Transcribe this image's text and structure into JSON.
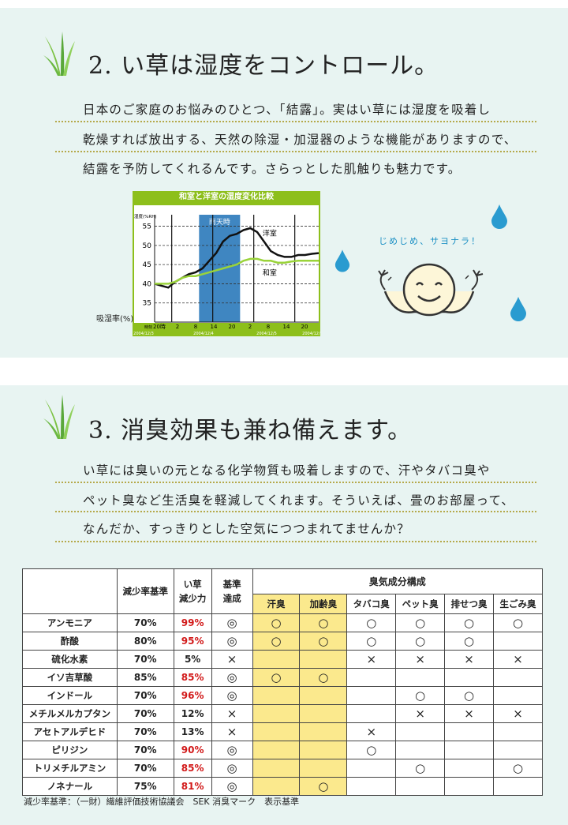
{
  "section1": {
    "heading": "2. い草は湿度をコントロール。",
    "lines": [
      "日本のご家庭のお悩みのひとつ、「結露」。実はい草には湿度を吸着し",
      "乾燥すれば放出する、天然の除湿・加湿器のような機能がありますので、",
      "結露を予防してくれるんです。さらっとした肌触りも魅力です。"
    ],
    "chart": {
      "title": "和室と洋室の湿度変化比較",
      "unit_label": "湿度(%RH)",
      "ylabel": "吸湿率(%)",
      "band_label": "雨天時",
      "series_labels": [
        "洋室",
        "和室"
      ],
      "x_header": "時刻",
      "hour_ticks": [
        "20時",
        "2",
        "8",
        "14",
        "20",
        "2",
        "8",
        "14",
        "20",
        "2"
      ],
      "dates": [
        "2004/12/3",
        "2004/12/4",
        "2004/12/5",
        "2004/12/6"
      ],
      "colors": {
        "frame": "#8dbf1b",
        "band": "#3f86c1",
        "yoshitsu": "#111111",
        "washitsu": "#9ad33a"
      }
    },
    "mascot_text": "じめじめ、サヨナラ！"
  },
  "chart_data": {
    "type": "line",
    "title": "和室と洋室の湿度変化比較",
    "xlabel": "時刻",
    "ylabel": "吸湿率(%)",
    "ylim": [
      30,
      58
    ],
    "yticks": [
      35,
      40,
      45,
      50,
      55
    ],
    "x": [
      0,
      1,
      2,
      3,
      4,
      5,
      6,
      7,
      8,
      9,
      10,
      11,
      12,
      13,
      14,
      15,
      16,
      17,
      18,
      19,
      20,
      21,
      22,
      23,
      24
    ],
    "series": [
      {
        "name": "洋室",
        "values": [
          40,
          39.5,
          39,
          40.5,
          41.5,
          42.5,
          43,
          44,
          46,
          48,
          51,
          52.5,
          53,
          54,
          54.5,
          53.5,
          51,
          48.5,
          47.5,
          47,
          47,
          47.5,
          47.5,
          47.8,
          48
        ]
      },
      {
        "name": "和室",
        "values": [
          40,
          40,
          40,
          40.5,
          41.5,
          42,
          42,
          42.5,
          43,
          43.5,
          44,
          44.5,
          45,
          46,
          46.5,
          46.5,
          46,
          46,
          45.5,
          45.5,
          45.8,
          46,
          46,
          46,
          46
        ]
      }
    ],
    "grid": true
  },
  "section2": {
    "heading": "3. 消臭効果も兼ね備えます。",
    "lines": [
      "い草には臭いの元となる化学物質も吸着しますので、汗やタバコ臭や",
      "ペット臭など生活臭を軽減してくれます。そういえば、畳のお部屋って、",
      "なんだか、すっきりとした空気につつまれてませんか？"
    ]
  },
  "table": {
    "header": {
      "standard": "減少率基準",
      "igusa1": "い草",
      "igusa2": "減少力",
      "achieve1": "基準",
      "achieve2": "達成",
      "group": "臭気成分構成",
      "odors": [
        "汗臭",
        "加齢臭",
        "タバコ臭",
        "ペット臭",
        "排せつ臭",
        "生ごみ臭"
      ]
    },
    "rows": [
      {
        "name": "アンモニア",
        "std": "70%",
        "val": "99%",
        "red": true,
        "ach": "◎",
        "o": [
          "○",
          "○",
          "○",
          "○",
          "○",
          "○"
        ]
      },
      {
        "name": "酢酸",
        "std": "80%",
        "val": "95%",
        "red": true,
        "ach": "◎",
        "o": [
          "○",
          "○",
          "○",
          "○",
          "○",
          ""
        ]
      },
      {
        "name": "硫化水素",
        "std": "70%",
        "val": "5%",
        "red": false,
        "ach": "×",
        "o": [
          "",
          "",
          "×",
          "×",
          "×",
          "×"
        ]
      },
      {
        "name": "イソ吉草酸",
        "std": "85%",
        "val": "85%",
        "red": true,
        "ach": "◎",
        "o": [
          "○",
          "○",
          "",
          "",
          "",
          ""
        ]
      },
      {
        "name": "インドール",
        "std": "70%",
        "val": "96%",
        "red": true,
        "ach": "◎",
        "o": [
          "",
          "",
          "",
          "○",
          "○",
          ""
        ]
      },
      {
        "name": "メチルメルカプタン",
        "std": "70%",
        "val": "12%",
        "red": false,
        "ach": "×",
        "o": [
          "",
          "",
          "",
          "×",
          "×",
          "×"
        ]
      },
      {
        "name": "アセトアルデヒド",
        "std": "70%",
        "val": "13%",
        "red": false,
        "ach": "×",
        "o": [
          "",
          "",
          "×",
          "",
          "",
          ""
        ]
      },
      {
        "name": "ピリジン",
        "std": "70%",
        "val": "90%",
        "red": true,
        "ach": "◎",
        "o": [
          "",
          "",
          "○",
          "",
          "",
          ""
        ]
      },
      {
        "name": "トリメチルアミン",
        "std": "70%",
        "val": "85%",
        "red": true,
        "ach": "◎",
        "o": [
          "",
          "",
          "",
          "○",
          "",
          "○"
        ]
      },
      {
        "name": "ノネナール",
        "std": "75%",
        "val": "81%",
        "red": true,
        "ach": "◎",
        "o": [
          "",
          "○",
          "",
          "",
          "",
          ""
        ]
      }
    ]
  },
  "footnote": "減少率基準：（一財）繊維評価技術協議会　SEK 消臭マーク　表示基準"
}
